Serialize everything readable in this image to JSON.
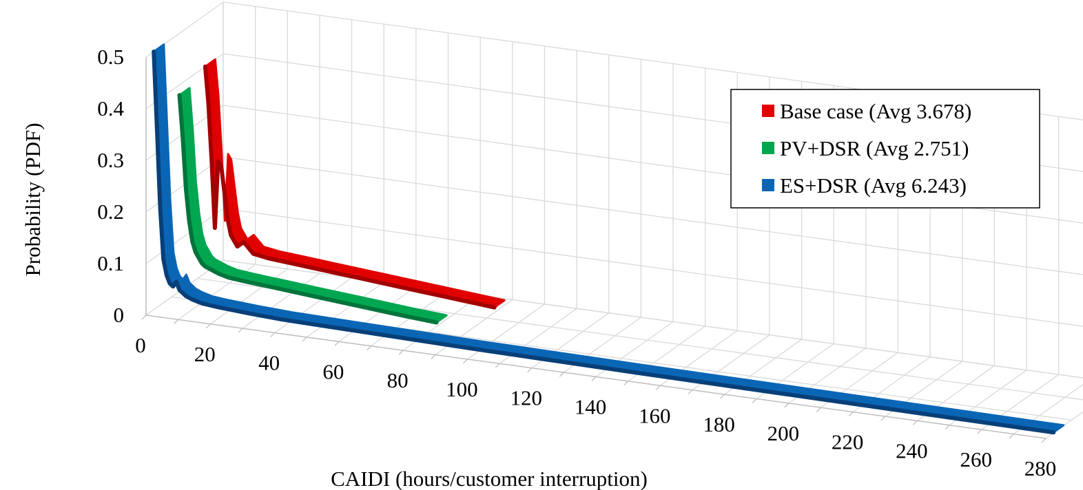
{
  "chart_data": {
    "type": "line",
    "style": "3d-line",
    "xlabel": "CAIDI (hours/customer interruption)",
    "ylabel": "Probability (PDF)",
    "xlim": [
      0,
      280
    ],
    "ylim": [
      0,
      0.5
    ],
    "x_ticks": [
      0,
      20,
      40,
      60,
      80,
      100,
      120,
      140,
      160,
      180,
      200,
      220,
      240,
      260,
      280
    ],
    "y_ticks": [
      0,
      0.1,
      0.2,
      0.3,
      0.4,
      0.5
    ],
    "grid": true,
    "legend_position": "top-right",
    "series": [
      {
        "name": "Base case (Avg 3.678)",
        "color": "#e10000",
        "shade": "#a30000",
        "x": [
          0,
          1,
          2,
          3,
          4,
          5,
          6,
          7,
          8,
          10,
          12,
          15,
          20,
          30,
          40,
          50,
          60,
          70,
          80,
          90
        ],
        "y": [
          0.4,
          0.33,
          0.22,
          0.09,
          0.22,
          0.21,
          0.16,
          0.11,
          0.08,
          0.06,
          0.07,
          0.05,
          0.045,
          0.04,
          0.035,
          0.03,
          0.025,
          0.02,
          0.015,
          0.01
        ]
      },
      {
        "name": "PV+DSR (Avg 2.751)",
        "color": "#00a650",
        "shade": "#00743a",
        "x": [
          0,
          1,
          2,
          3,
          4,
          5,
          6,
          7,
          8,
          10,
          12,
          15,
          20,
          30,
          40,
          50,
          60,
          70,
          80
        ],
        "y": [
          0.38,
          0.3,
          0.2,
          0.14,
          0.1,
          0.08,
          0.07,
          0.06,
          0.055,
          0.05,
          0.045,
          0.04,
          0.037,
          0.032,
          0.027,
          0.022,
          0.017,
          0.012,
          0.008
        ]
      },
      {
        "name": "ES+DSR (Avg 6.243)",
        "color": "#0a66b5",
        "shade": "#083f78",
        "x": [
          0,
          1,
          2,
          3,
          4,
          5,
          6,
          7,
          8,
          10,
          12,
          15,
          20,
          30,
          40,
          60,
          80,
          100,
          150,
          200,
          250,
          280
        ],
        "y": [
          0.5,
          0.35,
          0.2,
          0.1,
          0.07,
          0.055,
          0.05,
          0.06,
          0.045,
          0.035,
          0.03,
          0.025,
          0.022,
          0.018,
          0.015,
          0.013,
          0.011,
          0.009,
          0.006,
          0.004,
          0.002,
          0.001
        ]
      }
    ]
  }
}
